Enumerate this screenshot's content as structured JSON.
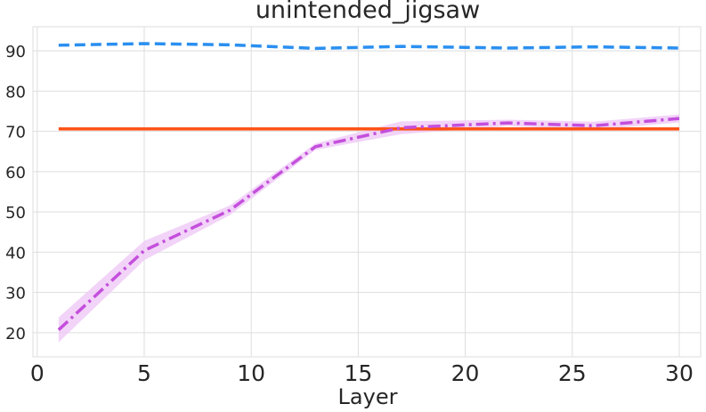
{
  "chart_data": {
    "type": "line",
    "title": "unintended_jigsaw",
    "xlabel": "Layer",
    "ylabel": "",
    "xlim": [
      -0.2,
      31.0
    ],
    "ylim": [
      14,
      96
    ],
    "xticks": [
      0,
      5,
      10,
      15,
      20,
      25,
      30
    ],
    "yticks": [
      20,
      30,
      40,
      50,
      60,
      70,
      80,
      90
    ],
    "grid": true,
    "legend": "none",
    "series": [
      {
        "style": "dashed",
        "color": "#2a8ff0",
        "x": [
          1,
          5,
          9,
          13,
          17,
          22,
          26,
          30
        ],
        "values": [
          91.4,
          91.8,
          91.5,
          90.6,
          91.1,
          90.7,
          91.0,
          90.7
        ]
      },
      {
        "style": "solid",
        "color": "#ff4f12",
        "x": [
          1,
          30
        ],
        "values": [
          70.6,
          70.6
        ]
      },
      {
        "style": "dashdot",
        "color": "#c44fdc",
        "band_color": "#efc9f6",
        "x": [
          1,
          5,
          9,
          13,
          17,
          22,
          26,
          30
        ],
        "values": [
          20.7,
          40.4,
          50.4,
          66.2,
          70.9,
          72.1,
          71.4,
          73.2
        ],
        "lower": [
          17.6,
          38.0,
          49.2,
          65.4,
          69.3,
          71.3,
          70.4,
          72.2
        ],
        "upper": [
          23.8,
          42.8,
          51.6,
          67.0,
          72.5,
          72.9,
          72.4,
          74.2
        ]
      }
    ]
  }
}
